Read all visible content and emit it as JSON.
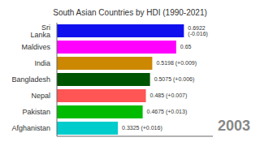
{
  "chart_data": {
    "type": "bar",
    "orientation": "horizontal",
    "title": "South Asian Countries by HDI (1990-2021)",
    "annotations": [
      "2003"
    ],
    "categories": [
      "Sri Lanka",
      "Maldives",
      "India",
      "Bangladesh",
      "Nepal",
      "Pakistan",
      "Afghanistan"
    ],
    "values": [
      0.6922,
      0.65,
      0.5198,
      0.5075,
      0.485,
      0.4675,
      0.3325
    ],
    "value_labels": [
      "0.6922 (-0.016)",
      "0.65",
      "0.5198 (+0.009)",
      "0.5075 (+0.006)",
      "0.485 (+0.007)",
      "0.4675 (+0.013)",
      "0.3325 (+0.016)"
    ],
    "colors": [
      "#1010ee",
      "#ff00ff",
      "#cc8800",
      "#005500",
      "#ff5555",
      "#00bb00",
      "#00cccc"
    ],
    "xlim": [
      0,
      0.85
    ],
    "data_labels": true,
    "tick_labels": "y",
    "grid": false
  }
}
